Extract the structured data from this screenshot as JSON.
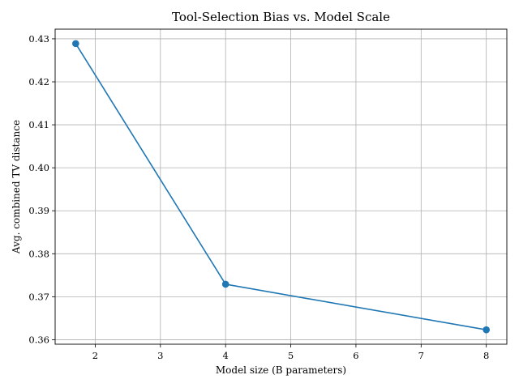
{
  "chart_data": {
    "type": "line",
    "title": "Tool-Selection Bias vs. Model Scale",
    "xlabel": "Model size (B parameters)",
    "ylabel": "Avg. combined TV distance",
    "x": [
      1.7,
      4,
      8
    ],
    "series": [
      {
        "values": [
          0.4289,
          0.3729,
          0.3623
        ]
      }
    ],
    "xlim": [
      1.385,
      8.315
    ],
    "ylim": [
      0.35895,
      0.43225
    ],
    "xticks": [
      2,
      3,
      4,
      5,
      6,
      7,
      8
    ],
    "xtick_labels": [
      "2",
      "3",
      "4",
      "5",
      "6",
      "7",
      "8"
    ],
    "yticks": [
      0.36,
      0.37,
      0.38,
      0.39,
      0.4,
      0.41,
      0.42,
      0.43
    ],
    "ytick_labels": [
      "0.36",
      "0.37",
      "0.38",
      "0.39",
      "0.40",
      "0.41",
      "0.42",
      "0.43"
    ],
    "grid": true,
    "line_color": "#1f77b4",
    "marker": "circle"
  }
}
